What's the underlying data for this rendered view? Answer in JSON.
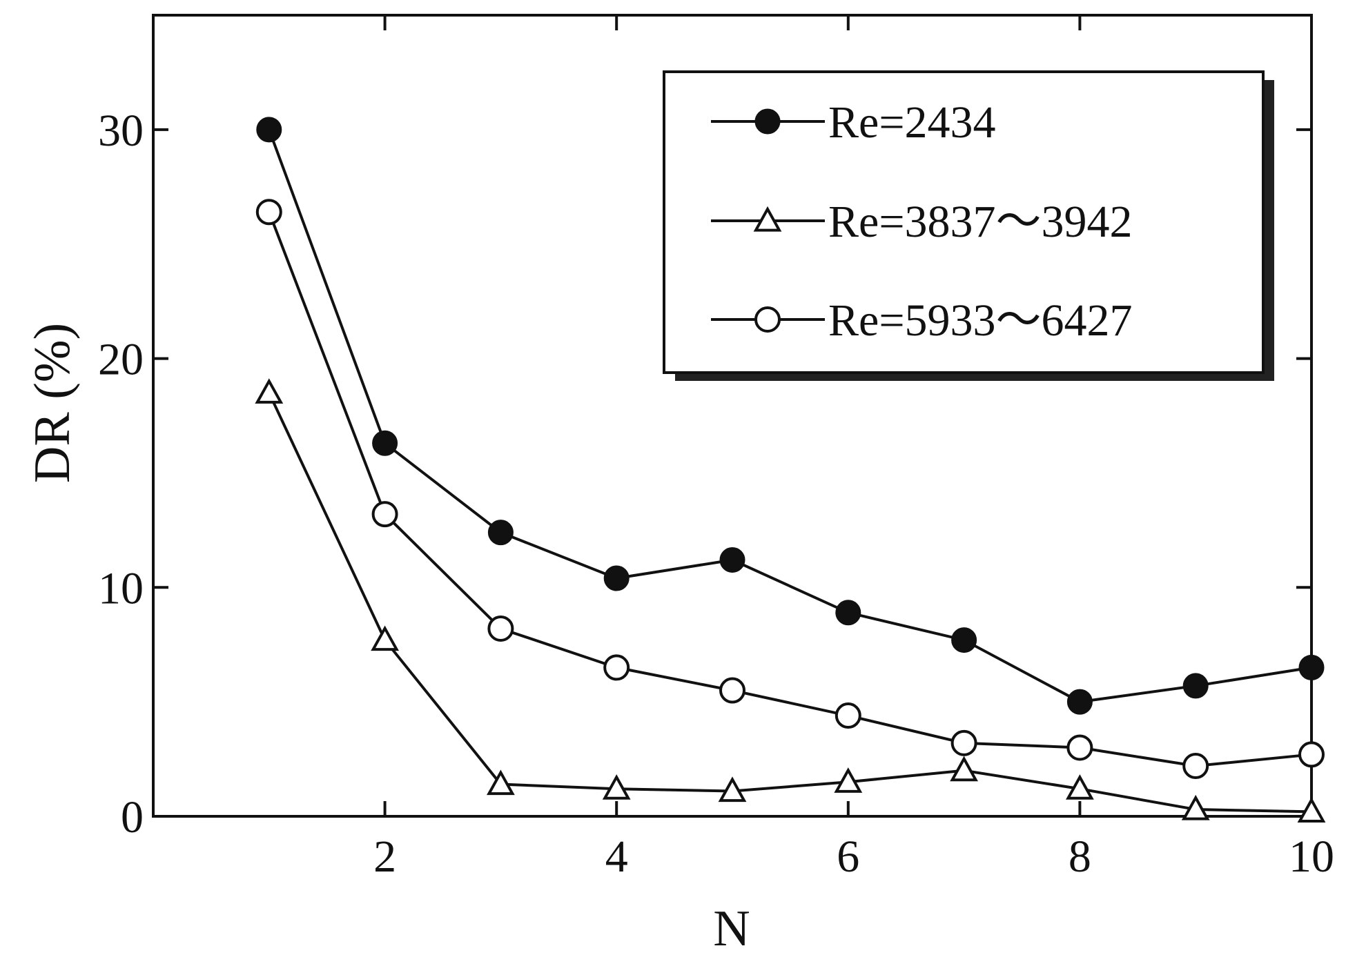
{
  "chart_data": {
    "type": "line",
    "xlabel": "N",
    "ylabel": "DR (%)",
    "xlim": [
      0,
      10
    ],
    "ylim": [
      0,
      35
    ],
    "xticks": [
      2,
      4,
      6,
      8,
      10
    ],
    "yticks": [
      0,
      10,
      20,
      30
    ],
    "grid": false,
    "legend_position": "top-right",
    "series": [
      {
        "name": "Re=2434",
        "marker": "filled-circle",
        "x": [
          1,
          2,
          3,
          4,
          5,
          6,
          7,
          8,
          9,
          10
        ],
        "y": [
          30.0,
          16.3,
          12.4,
          10.4,
          11.2,
          8.9,
          7.7,
          5.0,
          5.7,
          6.5
        ]
      },
      {
        "name": "Re=3837～3942",
        "marker": "open-triangle",
        "x": [
          1,
          2,
          3,
          4,
          5,
          6,
          7,
          8,
          9,
          10
        ],
        "y": [
          18.5,
          7.7,
          1.4,
          1.2,
          1.1,
          1.5,
          2.0,
          1.2,
          0.3,
          0.2
        ]
      },
      {
        "name": "Re=5933～6427",
        "marker": "open-circle",
        "x": [
          1,
          2,
          3,
          4,
          5,
          6,
          7,
          8,
          9,
          10
        ],
        "y": [
          26.4,
          13.2,
          8.2,
          6.5,
          5.5,
          4.4,
          3.2,
          3.0,
          2.2,
          2.7
        ]
      }
    ]
  }
}
